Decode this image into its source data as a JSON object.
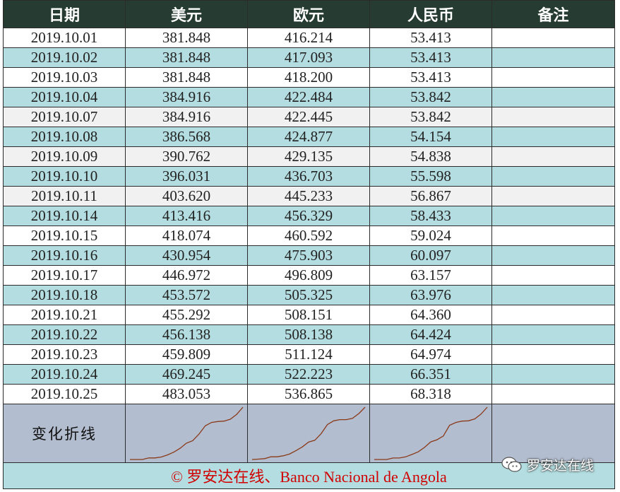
{
  "headers": [
    "日期",
    "美元",
    "欧元",
    "人民币",
    "备注"
  ],
  "rows": [
    {
      "date": "2019.10.01",
      "usd": "381.848",
      "eur": "416.214",
      "cny": "53.413",
      "note": ""
    },
    {
      "date": "2019.10.02",
      "usd": "381.848",
      "eur": "417.093",
      "cny": "53.413",
      "note": ""
    },
    {
      "date": "2019.10.03",
      "usd": "381.848",
      "eur": "418.200",
      "cny": "53.413",
      "note": ""
    },
    {
      "date": "2019.10.04",
      "usd": "384.916",
      "eur": "422.484",
      "cny": "53.842",
      "note": ""
    },
    {
      "date": "2019.10.07",
      "usd": "384.916",
      "eur": "422.445",
      "cny": "53.842",
      "note": ""
    },
    {
      "date": "2019.10.08",
      "usd": "386.568",
      "eur": "424.877",
      "cny": "54.154",
      "note": ""
    },
    {
      "date": "2019.10.09",
      "usd": "390.762",
      "eur": "429.135",
      "cny": "54.838",
      "note": ""
    },
    {
      "date": "2019.10.10",
      "usd": "396.031",
      "eur": "436.703",
      "cny": "55.598",
      "note": ""
    },
    {
      "date": "2019.10.11",
      "usd": "403.620",
      "eur": "445.233",
      "cny": "56.867",
      "note": ""
    },
    {
      "date": "2019.10.14",
      "usd": "413.416",
      "eur": "456.329",
      "cny": "58.433",
      "note": ""
    },
    {
      "date": "2019.10.15",
      "usd": "418.074",
      "eur": "460.592",
      "cny": "59.024",
      "note": ""
    },
    {
      "date": "2019.10.16",
      "usd": "430.954",
      "eur": "475.903",
      "cny": "60.097",
      "note": ""
    },
    {
      "date": "2019.10.17",
      "usd": "446.972",
      "eur": "496.809",
      "cny": "63.157",
      "note": ""
    },
    {
      "date": "2019.10.18",
      "usd": "453.572",
      "eur": "505.325",
      "cny": "63.976",
      "note": ""
    },
    {
      "date": "2019.10.21",
      "usd": "455.292",
      "eur": "508.151",
      "cny": "64.360",
      "note": ""
    },
    {
      "date": "2019.10.22",
      "usd": "456.138",
      "eur": "508.138",
      "cny": "64.424",
      "note": ""
    },
    {
      "date": "2019.10.23",
      "usd": "459.809",
      "eur": "511.124",
      "cny": "64.974",
      "note": ""
    },
    {
      "date": "2019.10.24",
      "usd": "469.245",
      "eur": "522.223",
      "cny": "66.351",
      "note": ""
    },
    {
      "date": "2019.10.25",
      "usd": "483.053",
      "eur": "536.865",
      "cny": "68.318",
      "note": ""
    }
  ],
  "row_styles": [
    "plain",
    "alt",
    "plain",
    "alt",
    "grey",
    "alt",
    "grey",
    "alt",
    "grey",
    "alt",
    "plain",
    "alt",
    "plain",
    "alt",
    "plain",
    "alt",
    "plain",
    "alt",
    "plain"
  ],
  "sparkline_label": "变化折线",
  "footer": "© 罗安达在线、Banco Nacional de Angola",
  "watermark": "罗安达在线",
  "colors": {
    "header_bg": "#263c33",
    "stripe": "#b3dde0",
    "spark_bg": "#b2bdcf",
    "spark_line": "#8b3a1a",
    "footer_text": "#d10000"
  }
}
